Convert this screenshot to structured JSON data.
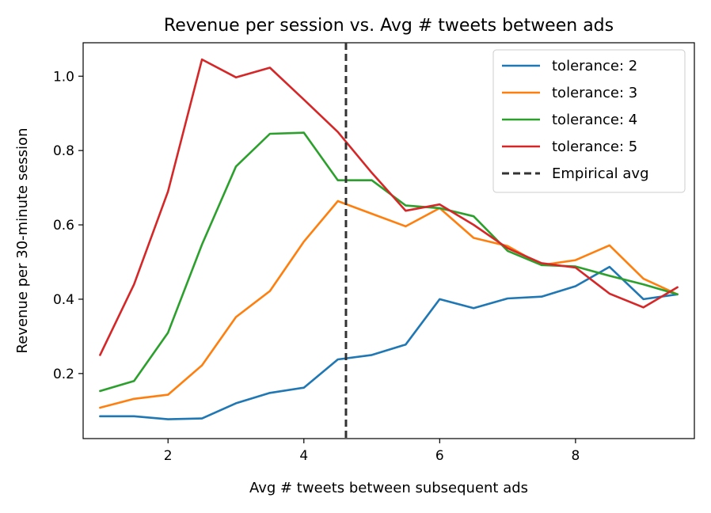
{
  "chart_data": {
    "type": "line",
    "title": "Revenue per session vs. Avg # tweets between ads",
    "xlabel": "Avg # tweets between subsequent ads",
    "ylabel": "Revenue per 30-minute session",
    "xlim": [
      0.75,
      9.75
    ],
    "ylim": [
      0.025,
      1.09
    ],
    "xticks": [
      2,
      4,
      6,
      8
    ],
    "yticks": [
      0.2,
      0.4,
      0.6,
      0.8,
      1.0
    ],
    "ytick_labels": [
      "0.2",
      "0.4",
      "0.6",
      "0.8",
      "1.0"
    ],
    "grid": false,
    "legend_position": "top-right",
    "x": [
      1,
      1.5,
      2,
      2.5,
      3,
      3.5,
      4,
      4.5,
      5,
      5.5,
      6,
      6.5,
      7,
      7.5,
      8,
      8.5,
      9,
      9.5
    ],
    "series": [
      {
        "name": "tolerance: 2",
        "color": "#1f77b4",
        "values": [
          0.085,
          0.085,
          0.077,
          0.079,
          0.12,
          0.148,
          0.162,
          0.238,
          0.25,
          0.278,
          0.4,
          0.376,
          0.402,
          0.407,
          0.435,
          0.487,
          0.4,
          0.413
        ]
      },
      {
        "name": "tolerance: 3",
        "color": "#ff7f0e",
        "values": [
          0.108,
          0.132,
          0.143,
          0.222,
          0.352,
          0.422,
          0.555,
          0.664,
          0.63,
          0.596,
          0.645,
          0.565,
          0.543,
          0.492,
          0.505,
          0.545,
          0.455,
          0.413
        ]
      },
      {
        "name": "tolerance: 4",
        "color": "#2ca02c",
        "values": [
          0.153,
          0.18,
          0.31,
          0.547,
          0.757,
          0.845,
          0.848,
          0.72,
          0.72,
          0.652,
          0.645,
          0.623,
          0.53,
          0.492,
          0.488,
          0.463,
          0.44,
          0.413
        ]
      },
      {
        "name": "tolerance: 5",
        "color": "#d62728",
        "values": [
          0.25,
          0.44,
          0.69,
          1.045,
          0.997,
          1.023,
          0.937,
          0.85,
          0.74,
          0.638,
          0.655,
          0.6,
          0.537,
          0.497,
          0.485,
          0.415,
          0.378,
          0.432
        ]
      }
    ],
    "annotations": [
      {
        "type": "vline",
        "x": 4.62,
        "style": "dashed",
        "color": "#333333",
        "name": "Empirical avg"
      }
    ]
  }
}
